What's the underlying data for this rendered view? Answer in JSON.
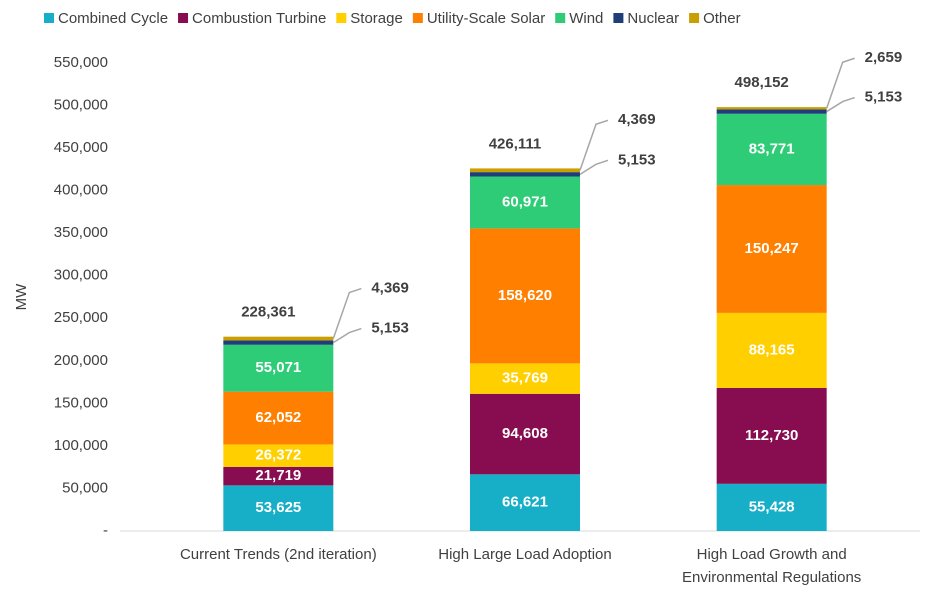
{
  "chart_data": {
    "type": "stacked_bar",
    "y_label": "MW",
    "categories": [
      "Current Trends (2nd iteration)",
      "High Large Load Adoption",
      "High Load Growth and Environmental Regulations"
    ],
    "series": [
      {
        "name": "Combined Cycle",
        "color": "#17afc7",
        "values": [
          53625,
          66621,
          55428
        ],
        "value_labels": [
          "53,625",
          "66,621",
          "55,428"
        ]
      },
      {
        "name": "Combustion Turbine",
        "color": "#870c50",
        "values": [
          21719,
          94608,
          112730
        ],
        "value_labels": [
          "21,719",
          "94,608",
          "112,730"
        ]
      },
      {
        "name": "Storage",
        "color": "#ffcf00",
        "values": [
          26372,
          35769,
          88165
        ],
        "value_labels": [
          "26,372",
          "35,769",
          "88,165"
        ]
      },
      {
        "name": "Utility-Scale Solar",
        "color": "#ff8000",
        "values": [
          62052,
          158620,
          150247
        ],
        "value_labels": [
          "62,052",
          "158,620",
          "150,247"
        ]
      },
      {
        "name": "Wind",
        "color": "#2fcc78",
        "values": [
          55071,
          60971,
          83771
        ],
        "value_labels": [
          "55,071",
          "60,971",
          "83,771"
        ]
      },
      {
        "name": "Nuclear",
        "color": "#1f3d78",
        "values": [
          5153,
          5153,
          5153
        ],
        "value_labels": [
          "5,153",
          "5,153",
          "5,153"
        ]
      },
      {
        "name": "Other",
        "color": "#c9a000",
        "values": [
          4369,
          4369,
          2659
        ],
        "value_labels": [
          "4,369",
          "4,369",
          "2,659"
        ]
      }
    ],
    "totals": [
      228361,
      426111,
      498152
    ],
    "total_labels": [
      "228,361",
      "426,111",
      "498,152"
    ],
    "ylim": [
      0,
      550000
    ],
    "yticks": [
      {
        "value": 0,
        "label": "-"
      },
      {
        "value": 50000,
        "label": "50,000"
      },
      {
        "value": 100000,
        "label": "100,000"
      },
      {
        "value": 150000,
        "label": "150,000"
      },
      {
        "value": 200000,
        "label": "200,000"
      },
      {
        "value": 250000,
        "label": "250,000"
      },
      {
        "value": 300000,
        "label": "300,000"
      },
      {
        "value": 350000,
        "label": "350,000"
      },
      {
        "value": 400000,
        "label": "400,000"
      },
      {
        "value": 450000,
        "label": "450,000"
      },
      {
        "value": 500000,
        "label": "500,000"
      },
      {
        "value": 550000,
        "label": "550,000"
      }
    ],
    "grid": false
  }
}
